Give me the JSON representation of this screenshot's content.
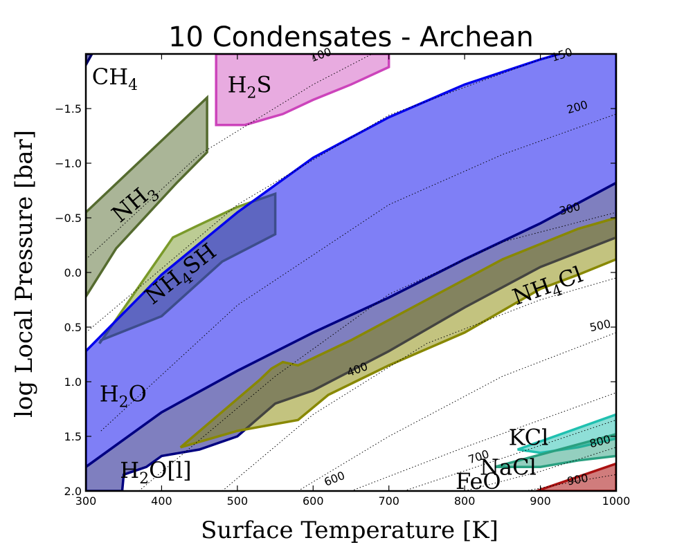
{
  "chart_data": {
    "type": "area",
    "title": "10 Condensates - Archean",
    "xlabel": "Surface Temperature [K]",
    "ylabel": "log Local Pressure [bar]",
    "xlim": [
      300,
      1000
    ],
    "ylim": [
      2.0,
      -2.0
    ],
    "x_ticks": [
      300,
      400,
      500,
      600,
      700,
      800,
      900,
      1000
    ],
    "y_ticks": [
      -1.5,
      -1.0,
      -0.5,
      0.0,
      0.5,
      1.0,
      1.5,
      2.0
    ],
    "x_tick_labels": [
      "300",
      "400",
      "500",
      "600",
      "700",
      "800",
      "900",
      "1000"
    ],
    "y_tick_labels": [
      "−1.5",
      "−1.0",
      "−0.5",
      "0.0",
      "0.5",
      "1.0",
      "1.5",
      "2.0"
    ],
    "isotherms": [
      {
        "label": "100",
        "points": [
          [
            300,
            -0.12
          ],
          [
            450,
            -1.08
          ],
          [
            600,
            -1.72
          ],
          [
            700,
            -2.08
          ]
        ]
      },
      {
        "label": "150",
        "points": [
          [
            300,
            0.55
          ],
          [
            500,
            -0.62
          ],
          [
            700,
            -1.44
          ],
          [
            900,
            -1.95
          ],
          [
            1000,
            -2.12
          ]
        ]
      },
      {
        "label": "200",
        "points": [
          [
            320,
            1.45
          ],
          [
            500,
            0.3
          ],
          [
            700,
            -0.62
          ],
          [
            850,
            -1.08
          ],
          [
            1000,
            -1.45
          ]
        ]
      },
      {
        "label": "300",
        "points": [
          [
            370,
            2.0
          ],
          [
            550,
            0.95
          ],
          [
            700,
            0.2
          ],
          [
            850,
            -0.28
          ],
          [
            1000,
            -0.55
          ]
        ]
      },
      {
        "label": "400",
        "points": [
          [
            480,
            2.0
          ],
          [
            600,
            1.3
          ],
          [
            750,
            0.65
          ],
          [
            900,
            0.25
          ],
          [
            1000,
            0.05
          ]
        ]
      },
      {
        "label": "500",
        "points": [
          [
            580,
            2.0
          ],
          [
            700,
            1.5
          ],
          [
            850,
            0.95
          ],
          [
            1000,
            0.55
          ]
        ]
      },
      {
        "label": "600",
        "points": [
          [
            650,
            2.0
          ],
          [
            800,
            1.6
          ],
          [
            1000,
            1.1
          ]
        ]
      },
      {
        "label": "700",
        "points": [
          [
            720,
            2.0
          ],
          [
            850,
            1.7
          ],
          [
            1000,
            1.35
          ]
        ]
      },
      {
        "label": "800",
        "points": [
          [
            800,
            2.0
          ],
          [
            900,
            1.82
          ],
          [
            1000,
            1.6
          ]
        ]
      },
      {
        "label": "900",
        "points": [
          [
            880,
            2.0
          ],
          [
            940,
            1.92
          ],
          [
            1000,
            1.85
          ]
        ]
      }
    ],
    "iso_label_positions": [
      {
        "label": "100",
        "x": 612,
        "y": -1.96,
        "rot": -20
      },
      {
        "label": "150",
        "x": 930,
        "y": -1.96,
        "rot": -18
      },
      {
        "label": "200",
        "x": 950,
        "y": -1.48,
        "rot": -16
      },
      {
        "label": "300",
        "x": 940,
        "y": -0.55,
        "rot": -14
      },
      {
        "label": "400",
        "x": 660,
        "y": 0.92,
        "rot": -20
      },
      {
        "label": "500",
        "x": 980,
        "y": 0.52,
        "rot": -12
      },
      {
        "label": "600",
        "x": 630,
        "y": 1.92,
        "rot": -22
      },
      {
        "label": "700",
        "x": 820,
        "y": 1.72,
        "rot": -18
      },
      {
        "label": "800",
        "x": 980,
        "y": 1.58,
        "rot": -14
      },
      {
        "label": "900",
        "x": 950,
        "y": 1.93,
        "rot": -10
      }
    ],
    "condensates": [
      {
        "name": "CH4",
        "label_main": "CH",
        "label_sub": "4",
        "color": "#000066",
        "fill_opacity": 0.55,
        "label_x": 308,
        "label_y": -1.72,
        "label_rot": 0,
        "points": [
          [
            300,
            -2.0
          ],
          [
            308,
            -2.0
          ],
          [
            300,
            -1.9
          ]
        ]
      },
      {
        "name": "H2S",
        "label_main": "H",
        "label_sub": "2",
        "label_after": "S",
        "color": "#cc44bb",
        "fill_opacity": 0.45,
        "label_x": 487,
        "label_y": -1.65,
        "label_rot": 0,
        "points": [
          [
            472,
            -2.0
          ],
          [
            700,
            -2.0
          ],
          [
            700,
            -1.88
          ],
          [
            650,
            -1.72
          ],
          [
            600,
            -1.58
          ],
          [
            560,
            -1.45
          ],
          [
            510,
            -1.35
          ],
          [
            472,
            -1.35
          ]
        ]
      },
      {
        "name": "NH3",
        "label_main": "NH",
        "label_sub": "3",
        "color": "#556b2f",
        "fill_opacity": 0.5,
        "label_x": 345,
        "label_y": -0.45,
        "label_rot": -40,
        "points": [
          [
            300,
            -0.55
          ],
          [
            460,
            -1.6
          ],
          [
            460,
            -1.1
          ],
          [
            420,
            -0.82
          ],
          [
            380,
            -0.52
          ],
          [
            340,
            -0.22
          ],
          [
            300,
            0.22
          ]
        ]
      },
      {
        "name": "NH4SH",
        "label_main": "NH",
        "label_sub": "4",
        "label_after": "SH",
        "color": "#7a9a2a",
        "fill_opacity": 0.5,
        "label_x": 388,
        "label_y": 0.3,
        "label_rot": -38,
        "points": [
          [
            318,
            0.65
          ],
          [
            415,
            -0.32
          ],
          [
            445,
            -0.42
          ],
          [
            500,
            -0.6
          ],
          [
            550,
            -0.72
          ],
          [
            550,
            -0.35
          ],
          [
            480,
            -0.1
          ],
          [
            400,
            0.4
          ],
          [
            320,
            0.62
          ]
        ]
      },
      {
        "name": "H2O",
        "label_main": "H",
        "label_sub": "2",
        "label_after": "O",
        "color": "#0000ee",
        "fill_opacity": 0.5,
        "label_x": 318,
        "label_y": 1.18,
        "label_rot": 0,
        "points": [
          [
            300,
            0.72
          ],
          [
            400,
            0.02
          ],
          [
            500,
            -0.55
          ],
          [
            600,
            -1.05
          ],
          [
            700,
            -1.42
          ],
          [
            800,
            -1.72
          ],
          [
            900,
            -1.95
          ],
          [
            1000,
            -2.15
          ],
          [
            1000,
            -0.82
          ],
          [
            900,
            -0.45
          ],
          [
            800,
            -0.12
          ],
          [
            700,
            0.23
          ],
          [
            600,
            0.55
          ],
          [
            500,
            0.9
          ],
          [
            400,
            1.28
          ],
          [
            300,
            1.78
          ]
        ]
      },
      {
        "name": "H2O[l]",
        "label_main": "H",
        "label_sub": "2",
        "label_after": "O[l]",
        "color": "#000080",
        "fill_opacity": 0.5,
        "label_x": 345,
        "label_y": 1.88,
        "label_rot": 0,
        "points": [
          [
            300,
            1.78
          ],
          [
            400,
            1.28
          ],
          [
            500,
            0.9
          ],
          [
            600,
            0.55
          ],
          [
            700,
            0.23
          ],
          [
            800,
            -0.12
          ],
          [
            900,
            -0.45
          ],
          [
            1000,
            -0.82
          ],
          [
            1000,
            -0.32
          ],
          [
            900,
            -0.05
          ],
          [
            800,
            0.32
          ],
          [
            700,
            0.72
          ],
          [
            600,
            1.08
          ],
          [
            550,
            1.2
          ],
          [
            500,
            1.5
          ],
          [
            450,
            1.62
          ],
          [
            400,
            1.68
          ],
          [
            380,
            1.78
          ],
          [
            350,
            1.85
          ],
          [
            348,
            2.0
          ],
          [
            300,
            2.0
          ]
        ]
      },
      {
        "name": "NH4Cl",
        "label_main": "NH",
        "label_sub": "4",
        "label_after": "Cl",
        "color": "#888800",
        "fill_opacity": 0.5,
        "label_x": 868,
        "label_y": 0.3,
        "label_rot": -20,
        "points": [
          [
            425,
            1.6
          ],
          [
            530,
            0.98
          ],
          [
            545,
            0.88
          ],
          [
            560,
            0.82
          ],
          [
            580,
            0.85
          ],
          [
            650,
            0.62
          ],
          [
            750,
            0.25
          ],
          [
            850,
            -0.12
          ],
          [
            950,
            -0.4
          ],
          [
            1000,
            -0.5
          ],
          [
            1000,
            -0.12
          ],
          [
            950,
            0.02
          ],
          [
            900,
            0.15
          ],
          [
            800,
            0.55
          ],
          [
            700,
            0.85
          ],
          [
            620,
            1.12
          ],
          [
            580,
            1.35
          ],
          [
            540,
            1.4
          ],
          [
            500,
            1.45
          ],
          [
            425,
            1.6
          ]
        ]
      },
      {
        "name": "KCl",
        "label_main": "KCl",
        "color": "#20c0b0",
        "fill_opacity": 0.5,
        "label_x": 858,
        "label_y": 1.58,
        "label_rot": 0,
        "points": [
          [
            870,
            1.62
          ],
          [
            1000,
            1.3
          ],
          [
            1000,
            1.52
          ],
          [
            950,
            1.6
          ],
          [
            900,
            1.65
          ],
          [
            870,
            1.62
          ]
        ]
      },
      {
        "name": "NaCl",
        "label_main": "NaCl",
        "color": "#2aa080",
        "fill_opacity": 0.5,
        "label_x": 820,
        "label_y": 1.85,
        "label_rot": 0,
        "points": [
          [
            840,
            1.78
          ],
          [
            1000,
            1.48
          ],
          [
            1000,
            1.68
          ],
          [
            950,
            1.72
          ],
          [
            900,
            1.78
          ],
          [
            840,
            1.78
          ]
        ]
      },
      {
        "name": "FeO",
        "label_main": "FeO",
        "color": "#aa1111",
        "fill_opacity": 0.55,
        "label_x": 788,
        "label_y": 1.98,
        "label_rot": 0,
        "points": [
          [
            895,
            2.0
          ],
          [
            1000,
            1.75
          ],
          [
            1000,
            2.0
          ]
        ]
      }
    ]
  }
}
